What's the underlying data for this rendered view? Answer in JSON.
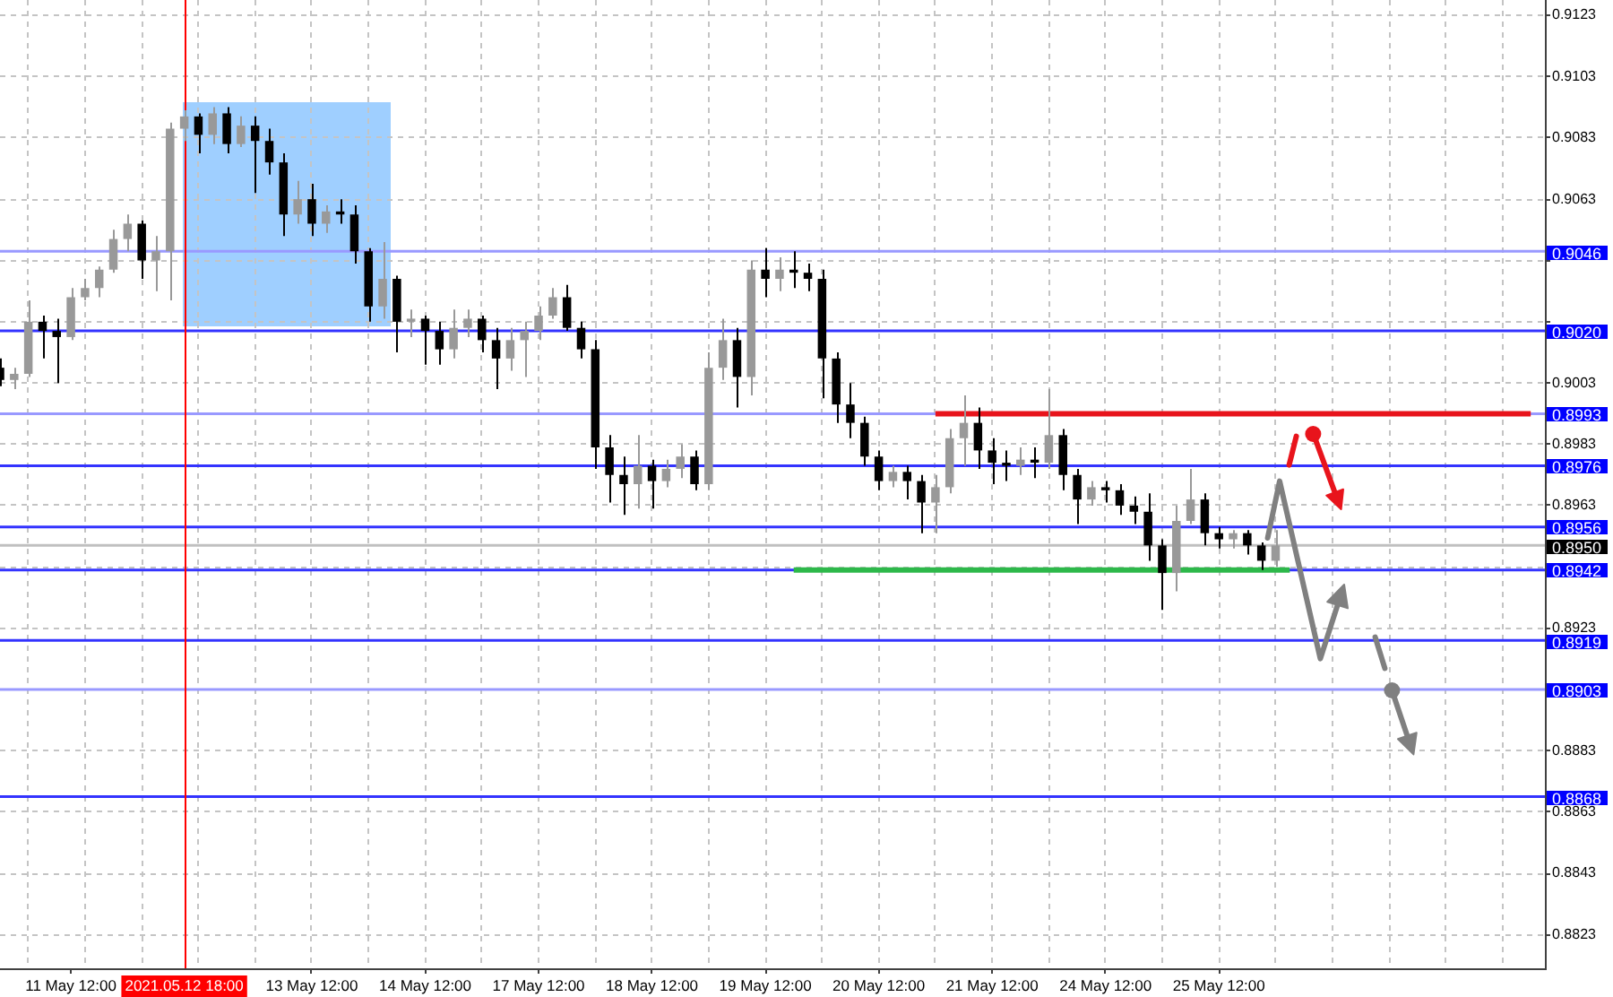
{
  "chart_data": {
    "type": "candlestick",
    "categories": [
      null,
      null,
      null,
      null,
      null,
      "11 May 12:00",
      null,
      null,
      null,
      null,
      null,
      null,
      null,
      "2021.05.12 18:00",
      null,
      null,
      null,
      null,
      null,
      null,
      null,
      null,
      "13 May 12:00",
      null,
      null,
      null,
      null,
      null,
      null,
      null,
      "14 May 12:00",
      null,
      null,
      null,
      null,
      null,
      null,
      null,
      "17 May 12:00",
      null,
      null,
      null,
      null,
      null,
      null,
      null,
      "18 May 12:00",
      null,
      null,
      null,
      null,
      null,
      null,
      null,
      "19 May 12:00",
      null,
      null,
      null,
      null,
      null,
      null,
      null,
      "20 May 12:00",
      null,
      null,
      null,
      null,
      null,
      null,
      null,
      "21 May 12:00",
      null,
      null,
      null,
      null,
      null,
      null,
      null,
      "24 May 12:00",
      null,
      null,
      null,
      null,
      null,
      null,
      null,
      "25 May 12:00",
      null,
      null,
      null,
      null,
      null,
      null,
      null,
      null,
      null,
      null,
      null,
      null,
      null,
      null,
      null,
      null,
      null,
      null,
      null,
      null,
      null,
      null,
      null
    ],
    "ohlc": [
      [
        0.9008,
        0.9011,
        0.9002,
        0.9004
      ],
      [
        0.9004,
        0.9008,
        0.9001,
        0.9006
      ],
      [
        0.9006,
        0.903,
        0.9005,
        0.9023
      ],
      [
        0.9023,
        0.9025,
        0.9011,
        0.902
      ],
      [
        0.902,
        0.9024,
        0.9003,
        0.9018
      ],
      [
        0.9018,
        0.9034,
        0.9017,
        0.9031
      ],
      [
        0.9031,
        0.9037,
        0.903,
        0.9034
      ],
      [
        0.9034,
        0.9041,
        0.9031,
        0.904
      ],
      [
        0.904,
        0.9053,
        0.9039,
        0.905
      ],
      [
        0.905,
        0.9058,
        0.9046,
        0.9055
      ],
      [
        0.9055,
        0.9056,
        0.9037,
        0.9043
      ],
      [
        0.9043,
        0.9051,
        0.9033,
        0.9046
      ],
      [
        0.9046,
        0.9088,
        0.903,
        0.9086
      ],
      [
        0.9086,
        0.9092,
        0.9082,
        0.909
      ],
      [
        0.909,
        0.9091,
        0.9078,
        0.9084
      ],
      [
        0.9084,
        0.9093,
        0.9081,
        0.9091
      ],
      [
        0.9091,
        0.9093,
        0.9078,
        0.9081
      ],
      [
        0.9081,
        0.909,
        0.908,
        0.9087
      ],
      [
        0.9087,
        0.909,
        0.9065,
        0.9082
      ],
      [
        0.9082,
        0.9086,
        0.9071,
        0.9075
      ],
      [
        0.9075,
        0.9078,
        0.9051,
        0.9058
      ],
      [
        0.9058,
        0.9069,
        0.9055,
        0.9063
      ],
      [
        0.9063,
        0.9068,
        0.9051,
        0.9055
      ],
      [
        0.9055,
        0.9061,
        0.9052,
        0.9059
      ],
      [
        0.9059,
        0.9063,
        0.9055,
        0.9058
      ],
      [
        0.9058,
        0.9061,
        0.9042,
        0.9046
      ],
      [
        0.9046,
        0.9047,
        0.9023,
        0.9028
      ],
      [
        0.9028,
        0.9049,
        0.9024,
        0.9037
      ],
      [
        0.9037,
        0.9038,
        0.9013,
        0.9023
      ],
      [
        0.9023,
        0.9027,
        0.9018,
        0.9024
      ],
      [
        0.9024,
        0.9025,
        0.9009,
        0.902
      ],
      [
        0.902,
        0.9023,
        0.9009,
        0.9014
      ],
      [
        0.9014,
        0.9027,
        0.9011,
        0.9021
      ],
      [
        0.9021,
        0.9027,
        0.9018,
        0.9024
      ],
      [
        0.9024,
        0.9025,
        0.9013,
        0.9017
      ],
      [
        0.9017,
        0.9021,
        0.9001,
        0.9011
      ],
      [
        0.9011,
        0.9021,
        0.9007,
        0.9017
      ],
      [
        0.9017,
        0.9023,
        0.9005,
        0.902
      ],
      [
        0.902,
        0.9028,
        0.9017,
        0.9025
      ],
      [
        0.9025,
        0.9034,
        0.9024,
        0.9031
      ],
      [
        0.9031,
        0.9035,
        0.902,
        0.9021
      ],
      [
        0.9021,
        0.9023,
        0.9011,
        0.9014
      ],
      [
        0.9014,
        0.9017,
        0.8975,
        0.8982
      ],
      [
        0.8982,
        0.8986,
        0.8964,
        0.8973
      ],
      [
        0.8973,
        0.8979,
        0.896,
        0.897
      ],
      [
        0.897,
        0.8986,
        0.8962,
        0.8976
      ],
      [
        0.8976,
        0.8978,
        0.8962,
        0.8971
      ],
      [
        0.8971,
        0.8978,
        0.8969,
        0.8975
      ],
      [
        0.8975,
        0.8983,
        0.8972,
        0.8979
      ],
      [
        0.8979,
        0.8981,
        0.8968,
        0.897
      ],
      [
        0.897,
        0.9013,
        0.8968,
        0.9008
      ],
      [
        0.9008,
        0.9024,
        0.9004,
        0.9017
      ],
      [
        0.9017,
        0.9021,
        0.8995,
        0.9005
      ],
      [
        0.9005,
        0.9043,
        0.8999,
        0.904
      ],
      [
        0.904,
        0.9047,
        0.9031,
        0.9037
      ],
      [
        0.9037,
        0.9044,
        0.9033,
        0.904
      ],
      [
        0.904,
        0.9046,
        0.9034,
        0.9039
      ],
      [
        0.9039,
        0.9042,
        0.9033,
        0.9037
      ],
      [
        0.9037,
        0.904,
        0.8998,
        0.9011
      ],
      [
        0.9011,
        0.9013,
        0.899,
        0.8996
      ],
      [
        0.8996,
        0.9003,
        0.8985,
        0.899
      ],
      [
        0.899,
        0.8992,
        0.8976,
        0.8979
      ],
      [
        0.8979,
        0.8981,
        0.8968,
        0.8971
      ],
      [
        0.8971,
        0.8976,
        0.8969,
        0.8974
      ],
      [
        0.8974,
        0.8976,
        0.8965,
        0.8971
      ],
      [
        0.8971,
        0.8973,
        0.8954,
        0.8964
      ],
      [
        0.8964,
        0.8973,
        0.8954,
        0.8969
      ],
      [
        0.8969,
        0.8988,
        0.8967,
        0.8985
      ],
      [
        0.8985,
        0.8999,
        0.8976,
        0.899
      ],
      [
        0.899,
        0.8995,
        0.8975,
        0.8981
      ],
      [
        0.8981,
        0.8985,
        0.897,
        0.8977
      ],
      [
        0.8977,
        0.8981,
        0.8971,
        0.8976
      ],
      [
        0.8976,
        0.8982,
        0.8973,
        0.8978
      ],
      [
        0.8978,
        0.8982,
        0.8972,
        0.8977
      ],
      [
        0.8977,
        0.9001,
        0.8975,
        0.8986
      ],
      [
        0.8986,
        0.8988,
        0.8968,
        0.8973
      ],
      [
        0.8973,
        0.8975,
        0.8957,
        0.8965
      ],
      [
        0.8965,
        0.8971,
        0.8963,
        0.8969
      ],
      [
        0.8969,
        0.8971,
        0.8964,
        0.8968
      ],
      [
        0.8968,
        0.897,
        0.896,
        0.8963
      ],
      [
        0.8963,
        0.8966,
        0.8957,
        0.8961
      ],
      [
        0.8961,
        0.8967,
        0.8945,
        0.895
      ],
      [
        0.895,
        0.8952,
        0.8929,
        0.8941
      ],
      [
        0.8941,
        0.8963,
        0.8935,
        0.8958
      ],
      [
        0.8958,
        0.8975,
        0.8957,
        0.8965
      ],
      [
        0.8965,
        0.8967,
        0.895,
        0.8954
      ],
      [
        0.8954,
        0.8956,
        0.8949,
        0.8952
      ],
      [
        0.8952,
        0.8955,
        0.8949,
        0.8954
      ],
      [
        0.8954,
        0.8955,
        0.8947,
        0.895
      ],
      [
        0.895,
        0.8951,
        0.8942,
        0.8945
      ],
      [
        0.8945,
        0.8955,
        0.8943,
        0.895
      ],
      null,
      null,
      null,
      null,
      null,
      null,
      null,
      null,
      null,
      null,
      null,
      null,
      null,
      null,
      null,
      null,
      null,
      null,
      null
    ],
    "colors": [
      "#000000",
      "#999999",
      "#999999",
      "#000000",
      "#000000",
      "#999999",
      "#999999",
      "#999999",
      "#999999",
      "#999999",
      "#000000",
      "#999999",
      "#999999",
      "#999999",
      "#000000",
      "#999999",
      "#000000",
      "#999999",
      "#000000",
      "#000000",
      "#000000",
      "#999999",
      "#000000",
      "#999999",
      "#000000",
      "#000000",
      "#000000",
      "#999999",
      "#000000",
      "#999999",
      "#000000",
      "#000000",
      "#999999",
      "#999999",
      "#000000",
      "#000000",
      "#999999",
      "#999999",
      "#999999",
      "#999999",
      "#000000",
      "#000000",
      "#000000",
      "#000000",
      "#000000",
      "#999999",
      "#000000",
      "#999999",
      "#999999",
      "#000000",
      "#999999",
      "#999999",
      "#000000",
      "#999999",
      "#000000",
      "#999999",
      "#000000",
      "#000000",
      "#000000",
      "#000000",
      "#000000",
      "#000000",
      "#000000",
      "#999999",
      "#000000",
      "#000000",
      "#999999",
      "#999999",
      "#999999",
      "#000000",
      "#000000",
      "#000000",
      "#999999",
      "#000000",
      "#999999",
      "#000000",
      "#000000",
      "#999999",
      "#000000",
      "#000000",
      "#000000",
      "#000000",
      "#000000",
      "#999999",
      "#999999",
      "#000000",
      "#000000",
      "#999999",
      "#000000",
      "#000000",
      "#999999",
      null,
      null,
      null,
      null,
      null,
      null,
      null,
      null,
      null,
      null,
      null,
      null,
      null,
      null,
      null,
      null,
      null,
      null,
      null
    ],
    "series": [
      {
        "type": "line",
        "color": "#e8141c",
        "values": [
          null,
          null,
          null,
          null,
          null,
          null,
          null,
          null,
          null,
          null,
          null,
          null,
          null,
          null,
          null,
          null,
          null,
          null,
          null,
          null,
          null,
          null,
          null,
          null,
          null,
          null,
          null,
          null,
          null,
          null,
          null,
          null,
          null,
          null,
          null,
          null,
          null,
          null,
          null,
          null,
          null,
          null,
          null,
          null,
          null,
          null,
          null,
          null,
          null,
          null,
          null,
          null,
          null,
          null,
          null,
          null,
          null,
          null,
          null,
          null,
          null,
          null,
          null,
          null,
          null,
          null,
          0.8993,
          0.8993,
          0.8993,
          0.8993,
          0.8993,
          0.8993,
          0.8993,
          0.8993,
          0.8993,
          0.8993,
          0.8993,
          0.8993,
          0.8993,
          0.8993,
          0.8993,
          0.8993,
          0.8993,
          0.8993,
          0.8993,
          0.8993,
          0.8993,
          0.8993,
          0.8993,
          0.8993,
          0.8993,
          0.8993,
          0.8993,
          0.8993,
          0.8993,
          0.8993,
          0.8993,
          0.8993,
          0.8993,
          0.8993,
          0.8993,
          0.8993,
          0.8993,
          0.8993,
          0.8993,
          0.8993,
          0.8993,
          0.8993,
          0.8993,
          null
        ]
      },
      {
        "type": "line",
        "color": "#2db84a",
        "values": [
          null,
          null,
          null,
          null,
          null,
          null,
          null,
          null,
          null,
          null,
          null,
          null,
          null,
          null,
          null,
          null,
          null,
          null,
          null,
          null,
          null,
          null,
          null,
          null,
          null,
          null,
          null,
          null,
          null,
          null,
          null,
          null,
          null,
          null,
          null,
          null,
          null,
          null,
          null,
          null,
          null,
          null,
          null,
          null,
          null,
          null,
          null,
          null,
          null,
          null,
          null,
          null,
          null,
          null,
          null,
          null,
          0.8942,
          0.8942,
          0.8942,
          0.8942,
          0.8942,
          0.8942,
          0.8942,
          0.8942,
          0.8942,
          0.8942,
          0.8942,
          0.8942,
          0.8942,
          0.8942,
          0.8942,
          0.8942,
          0.8942,
          0.8942,
          0.8942,
          0.8942,
          0.8942,
          0.8942,
          0.8942,
          0.8942,
          0.8942,
          0.8942,
          0.8942,
          0.8942,
          0.8942,
          0.8942,
          0.8942,
          0.8942,
          0.8942,
          0.8942,
          0.8942,
          0.8942,
          null,
          null,
          null,
          null,
          null,
          null,
          null,
          null,
          null,
          null,
          null,
          null,
          null,
          null,
          null,
          null,
          null,
          null
        ]
      }
    ],
    "ylim": [
      0.8812,
      0.9128
    ],
    "yticks": [
      0.8823,
      0.8843,
      0.8863,
      0.8883,
      {
        "value": 0.8903,
        "label": null
      },
      0.8923,
      {
        "value": 0.8943,
        "label": null
      },
      0.8963,
      0.8983,
      0.9003,
      {
        "value": 0.9023,
        "label": null
      },
      {
        "value": 0.9043,
        "label": null
      },
      0.9063,
      0.9083,
      0.9103,
      0.9123
    ],
    "grid": true,
    "ref_lines": [
      {
        "axis": "y",
        "value": 0.9046,
        "label": "0.9046",
        "color": "#9999ff"
      },
      {
        "axis": "y",
        "value": 0.902,
        "label": "0.9020",
        "color": "#3333ff"
      },
      {
        "axis": "y",
        "value": 0.8993,
        "label": "0.8993",
        "color": "#9999ff"
      },
      {
        "axis": "y",
        "value": 0.8976,
        "label": "0.8976",
        "color": "#3333ff"
      },
      {
        "axis": "y",
        "value": 0.8956,
        "label": "0.8956",
        "color": "#3333ff"
      },
      {
        "axis": "y",
        "value": 0.895,
        "label": "0.8950",
        "color": "#c0c0c0"
      },
      {
        "axis": "y",
        "value": 0.8942,
        "label": "0.8942",
        "color": "#3333ff"
      },
      {
        "axis": "y",
        "value": 0.8919,
        "label": "0.8919",
        "color": "#3333ff"
      },
      {
        "axis": "y",
        "value": 0.8903,
        "label": "0.8903",
        "color": "#9999ff"
      },
      {
        "axis": "y",
        "value": 0.8868,
        "label": "0.8868",
        "color": "#3333ff"
      },
      {
        "axis": "x",
        "value": "2021.05.12 18:00",
        "color": "#ff0000"
      }
    ]
  }
}
